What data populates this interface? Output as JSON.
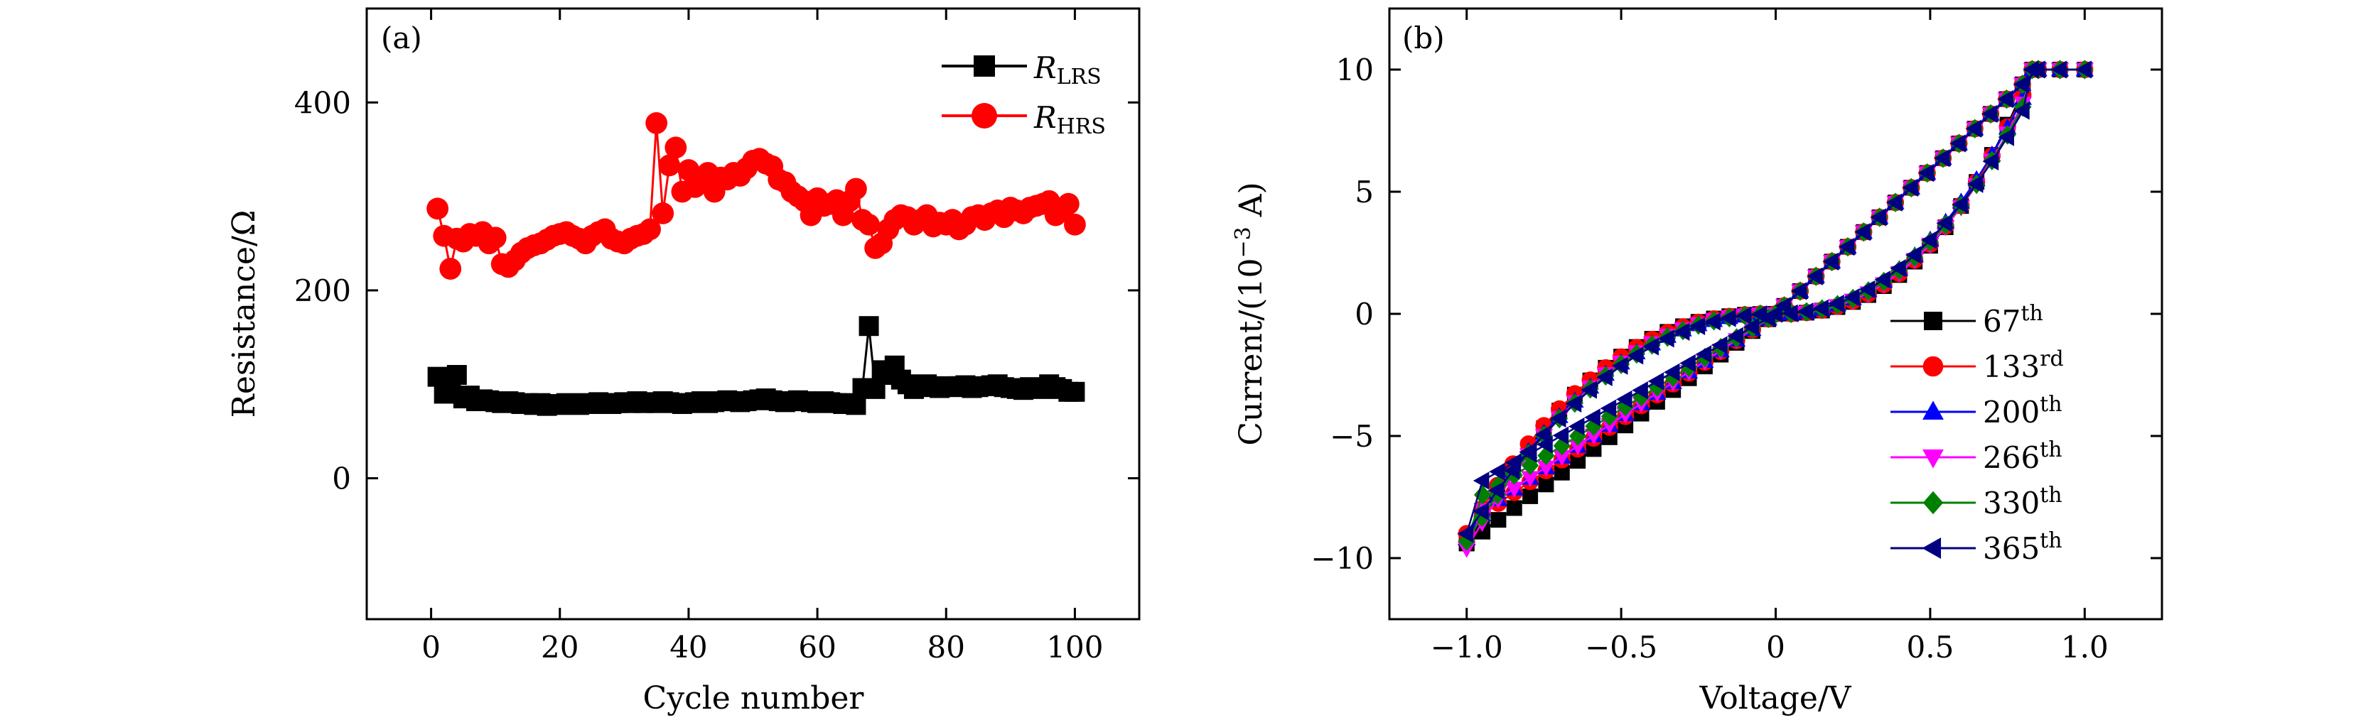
{
  "chart_data": [
    {
      "type": "scatter",
      "panel_label": "(a)",
      "xlabel": "Cycle number",
      "ylabel": "Resistance/Ω",
      "xlim": [
        -10,
        110
      ],
      "ylim": [
        -150,
        500
      ],
      "xticks": [
        0,
        20,
        40,
        60,
        80,
        100
      ],
      "yticks": [
        0,
        200,
        400
      ],
      "grid": false,
      "legend_position": "top-right",
      "series": [
        {
          "name": "R_LRS",
          "legend_main": "R",
          "legend_sub": "LRS",
          "color": "#000000",
          "marker": "square",
          "x": [
            1,
            2,
            3,
            4,
            5,
            6,
            7,
            8,
            9,
            10,
            11,
            12,
            13,
            14,
            15,
            16,
            17,
            18,
            19,
            20,
            21,
            22,
            23,
            24,
            25,
            26,
            27,
            28,
            29,
            30,
            31,
            32,
            33,
            34,
            35,
            36,
            37,
            38,
            39,
            40,
            41,
            42,
            43,
            44,
            45,
            46,
            47,
            48,
            49,
            50,
            51,
            52,
            53,
            54,
            55,
            56,
            57,
            58,
            59,
            60,
            61,
            62,
            63,
            64,
            65,
            66,
            67,
            68,
            69,
            70,
            71,
            72,
            73,
            74,
            75,
            76,
            77,
            78,
            79,
            80,
            81,
            82,
            83,
            84,
            85,
            86,
            87,
            88,
            89,
            90,
            91,
            92,
            93,
            94,
            95,
            96,
            97,
            98,
            99,
            100
          ],
          "y": [
            108,
            90,
            105,
            110,
            85,
            88,
            82,
            84,
            83,
            81,
            80,
            82,
            81,
            79,
            80,
            78,
            80,
            77,
            79,
            78,
            80,
            79,
            78,
            80,
            79,
            81,
            80,
            79,
            80,
            81,
            80,
            82,
            80,
            81,
            80,
            82,
            81,
            80,
            79,
            80,
            81,
            82,
            80,
            81,
            82,
            83,
            82,
            81,
            82,
            83,
            84,
            85,
            83,
            82,
            81,
            82,
            83,
            82,
            81,
            80,
            82,
            81,
            80,
            79,
            80,
            78,
            96,
            162,
            95,
            115,
            110,
            120,
            105,
            100,
            95,
            98,
            100,
            97,
            96,
            98,
            97,
            98,
            99,
            96,
            97,
            98,
            99,
            100,
            97,
            96,
            95,
            94,
            97,
            96,
            95,
            100,
            97,
            95,
            92,
            92
          ]
        },
        {
          "name": "R_HRS",
          "legend_main": "R",
          "legend_sub": "HRS",
          "color": "#ff0000",
          "marker": "circle",
          "x": [
            1,
            2,
            3,
            4,
            5,
            6,
            7,
            8,
            9,
            10,
            11,
            12,
            13,
            14,
            15,
            16,
            17,
            18,
            19,
            20,
            21,
            22,
            23,
            24,
            25,
            26,
            27,
            28,
            29,
            30,
            31,
            32,
            33,
            34,
            35,
            36,
            37,
            38,
            39,
            40,
            41,
            42,
            43,
            44,
            45,
            46,
            47,
            48,
            49,
            50,
            51,
            52,
            53,
            54,
            55,
            56,
            57,
            58,
            59,
            60,
            61,
            62,
            63,
            64,
            65,
            66,
            67,
            68,
            69,
            70,
            71,
            72,
            73,
            74,
            75,
            76,
            77,
            78,
            79,
            80,
            81,
            82,
            83,
            84,
            85,
            86,
            87,
            88,
            89,
            90,
            91,
            92,
            93,
            94,
            95,
            96,
            97,
            98,
            99,
            100
          ],
          "y": [
            287,
            258,
            223,
            255,
            252,
            260,
            258,
            262,
            250,
            256,
            228,
            225,
            232,
            240,
            245,
            248,
            250,
            254,
            258,
            260,
            262,
            258,
            255,
            250,
            258,
            262,
            265,
            255,
            252,
            250,
            255,
            258,
            260,
            265,
            378,
            282,
            333,
            352,
            305,
            328,
            310,
            315,
            325,
            305,
            320,
            318,
            325,
            322,
            330,
            338,
            340,
            335,
            332,
            318,
            315,
            305,
            300,
            295,
            280,
            298,
            290,
            292,
            296,
            280,
            295,
            308,
            275,
            270,
            245,
            250,
            265,
            275,
            280,
            278,
            270,
            275,
            280,
            268,
            272,
            270,
            275,
            265,
            270,
            278,
            280,
            275,
            282,
            285,
            278,
            288,
            285,
            282,
            288,
            290,
            292,
            295,
            280,
            285,
            292,
            270
          ]
        }
      ]
    },
    {
      "type": "line",
      "panel_label": "(b)",
      "xlabel": "Voltage/V",
      "ylabel": "Current/(10",
      "ylabel_exp": "−3",
      "ylabel_end": " A)",
      "xlim": [
        -1.25,
        1.25
      ],
      "ylim": [
        -12.5,
        12.5
      ],
      "xticks": [
        -1.0,
        -0.5,
        0,
        0.5,
        1.0
      ],
      "xtick_labels": [
        "−1.0",
        "−0.5",
        "0",
        "0.5",
        "1.0"
      ],
      "yticks": [
        -10,
        -5,
        0,
        5,
        10
      ],
      "ytick_labels": [
        "−10",
        "−5",
        "0",
        "5",
        "10"
      ],
      "grid": false,
      "legend_position": "bottom-right",
      "series": [
        {
          "name": "67th",
          "num": "67",
          "sup": "th",
          "color": "#000000",
          "marker": "square",
          "ymin": -9.4,
          "nl": 0.95
        },
        {
          "name": "133rd",
          "num": "133",
          "sup": "rd",
          "color": "#ff0000",
          "marker": "circle",
          "ymin": -9.0,
          "nl": 0.9
        },
        {
          "name": "200th",
          "num": "200",
          "sup": "th",
          "color": "#0000ff",
          "marker": "triangle-up",
          "ymin": -9.2,
          "nl": 0.8
        },
        {
          "name": "266th",
          "num": "266",
          "sup": "th",
          "color": "#ff00ff",
          "marker": "triangle-down",
          "ymin": -9.6,
          "nl": 0.85
        },
        {
          "name": "330th",
          "num": "330",
          "sup": "th",
          "color": "#008000",
          "marker": "diamond",
          "ymin": -9.3,
          "nl": 0.78
        },
        {
          "name": "365th",
          "num": "365",
          "sup": "th",
          "color": "#000080",
          "marker": "triangle-left",
          "ymin": -9.0,
          "nl": 0.72
        }
      ]
    }
  ]
}
